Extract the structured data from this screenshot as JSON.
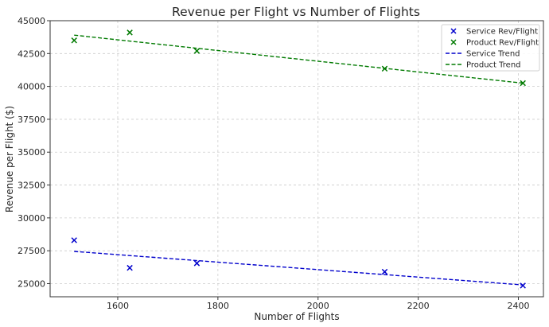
{
  "chart_data": {
    "type": "scatter",
    "title": "Revenue per Flight vs Number of Flights",
    "xlabel": "Number of Flights",
    "ylabel": "Revenue per Flight ($)",
    "xlim": [
      1465,
      2450
    ],
    "ylim": [
      24000,
      45000
    ],
    "xticks": [
      1600,
      1800,
      2000,
      2200,
      2400
    ],
    "yticks": [
      25000,
      27500,
      30000,
      32500,
      35000,
      37500,
      40000,
      42500,
      45000
    ],
    "grid": true,
    "legend_position": "top-right",
    "series": [
      {
        "name": "Service Rev/Flight",
        "kind": "scatter",
        "marker": "x",
        "color": "#0000cc",
        "x": [
          1513,
          1624,
          1758,
          2133,
          2409
        ],
        "y": [
          28300,
          26200,
          26550,
          25900,
          24850
        ]
      },
      {
        "name": "Product Rev/Flight",
        "kind": "scatter",
        "marker": "x",
        "color": "#007a00",
        "x": [
          1513,
          1624,
          1758,
          2133,
          2409
        ],
        "y": [
          43500,
          44100,
          42700,
          41350,
          40250
        ]
      },
      {
        "name": "Service Trend",
        "kind": "line",
        "dash": true,
        "color": "#0000cc",
        "x": [
          1513,
          2409
        ],
        "y": [
          27450,
          24900
        ]
      },
      {
        "name": "Product Trend",
        "kind": "line",
        "dash": true,
        "color": "#007a00",
        "x": [
          1513,
          2409
        ],
        "y": [
          43900,
          40250
        ]
      }
    ]
  }
}
